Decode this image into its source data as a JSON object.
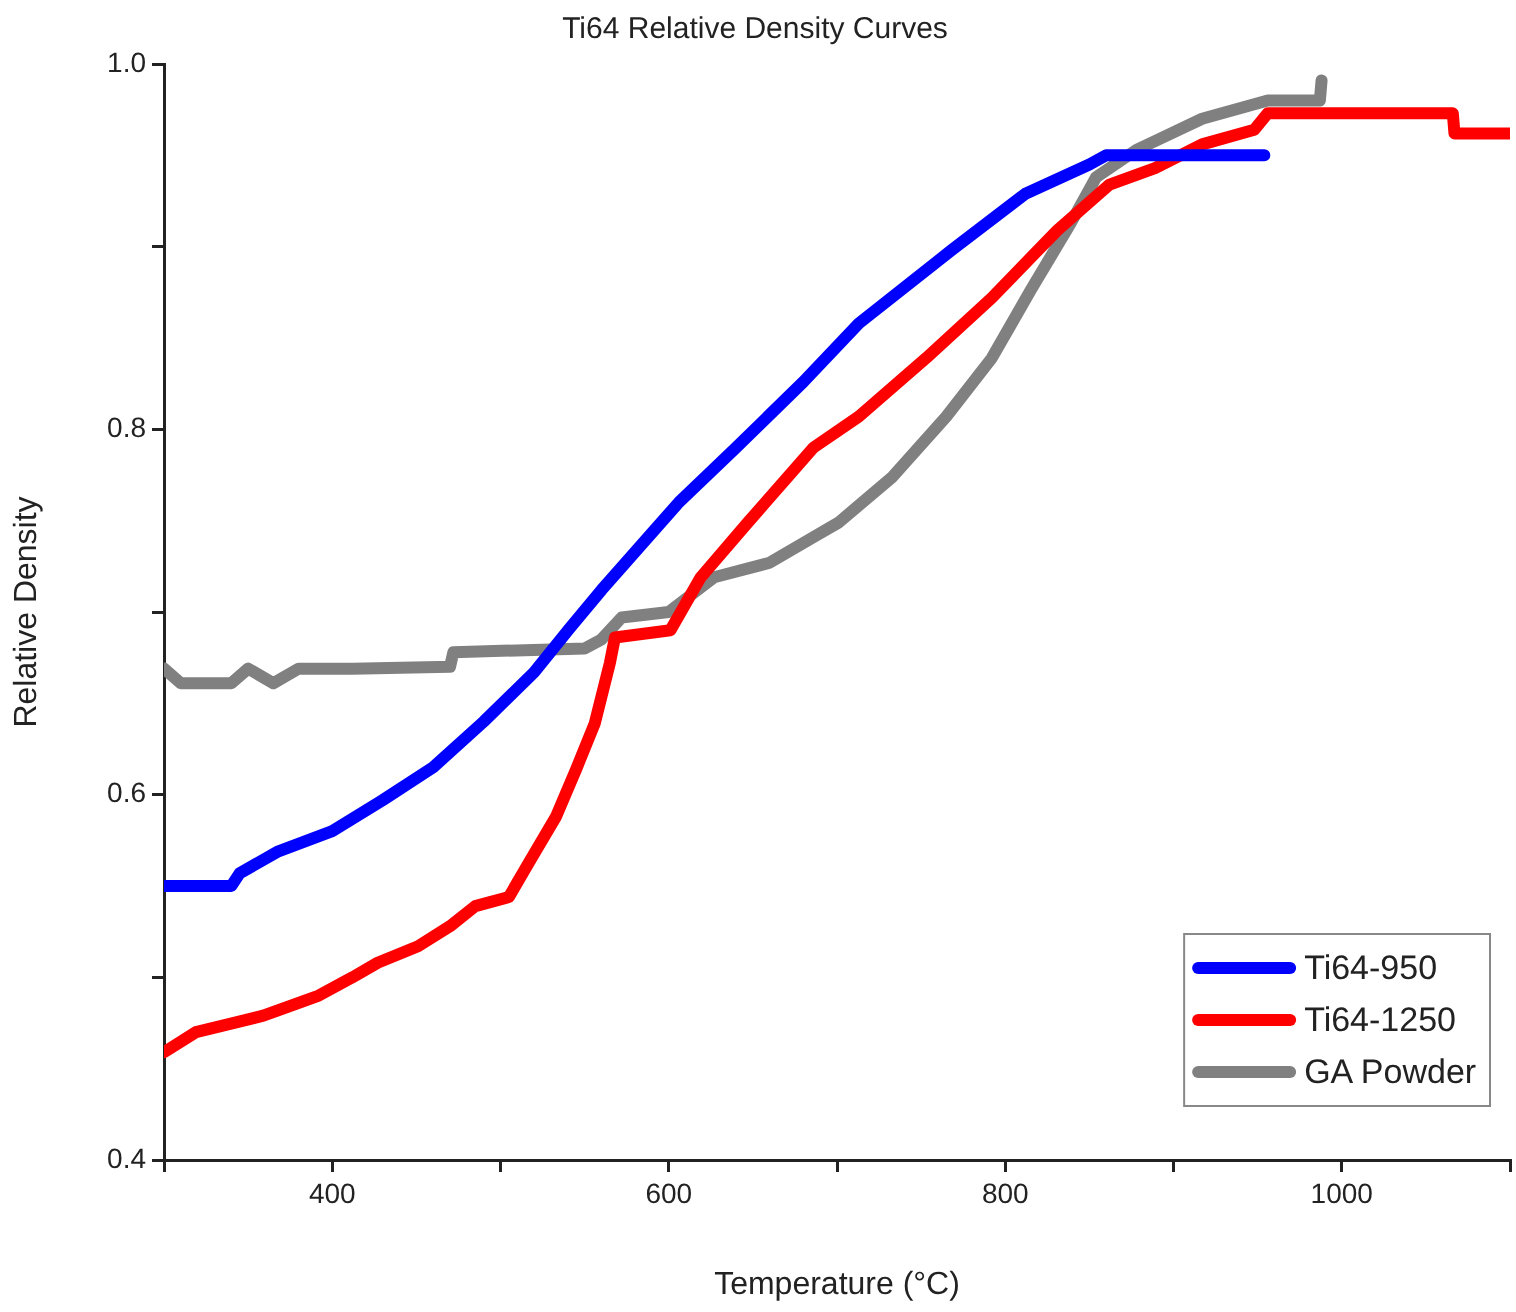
{
  "chart_data": {
    "type": "line",
    "title": "Ti64 Relative Density Curves",
    "xlabel": "Temperature (°C)",
    "ylabel": "Relative Density",
    "xlim": [
      300,
      1100
    ],
    "xticks": [
      {
        "value": 300,
        "label": null
      },
      400,
      {
        "value": 500,
        "label": null
      },
      600,
      {
        "value": 700,
        "label": null
      },
      800,
      {
        "value": 900,
        "label": null
      },
      1000,
      {
        "value": 1100,
        "label": null
      }
    ],
    "ylim": [
      0.4,
      1.0
    ],
    "yticks": [
      0.4,
      {
        "value": 0.5,
        "label": null
      },
      0.6,
      {
        "value": 0.7,
        "label": null
      },
      0.8,
      {
        "value": 0.9,
        "label": null
      },
      {
        "value": 1.0,
        "label": "1.0"
      }
    ],
    "grid": false,
    "legend": "bottom right",
    "marker": "none",
    "line_style": "solid",
    "series": [
      {
        "name": "Ti64-950",
        "color": "#0000ff",
        "x": [
          300,
          340,
          345,
          368,
          400,
          430,
          460,
          490,
          520,
          541,
          560,
          606,
          640,
          680,
          713,
          768,
          812,
          850,
          860,
          954
        ],
        "values": [
          0.55,
          0.55,
          0.557,
          0.569,
          0.58,
          0.597,
          0.615,
          0.64,
          0.667,
          0.691,
          0.712,
          0.76,
          0.79,
          0.826,
          0.858,
          0.898,
          0.929,
          0.945,
          0.95,
          0.95
        ]
      },
      {
        "name": "Ti64-1250",
        "color": "#ff0000",
        "x": [
          300,
          319,
          359,
          392,
          412,
          427,
          451,
          470,
          485,
          505,
          517,
          533,
          545,
          556,
          565,
          568,
          601,
          619,
          647,
          686,
          713,
          753,
          792,
          831,
          862,
          889,
          917,
          948,
          956,
          1066,
          1067,
          1100
        ],
        "values": [
          0.459,
          0.47,
          0.479,
          0.49,
          0.5,
          0.508,
          0.517,
          0.528,
          0.539,
          0.544,
          0.563,
          0.588,
          0.614,
          0.639,
          0.672,
          0.686,
          0.69,
          0.719,
          0.749,
          0.79,
          0.807,
          0.839,
          0.872,
          0.909,
          0.934,
          0.943,
          0.956,
          0.964,
          0.973,
          0.973,
          0.962,
          0.962
        ]
      },
      {
        "name": "GA Powder",
        "color": "#808080",
        "x": [
          300,
          310,
          340,
          350,
          365,
          380,
          412,
          470,
          472,
          550,
          560,
          572,
          600,
          627,
          660,
          686,
          701,
          733,
          765,
          792,
          815,
          839,
          854,
          878,
          894,
          917,
          956,
          987,
          988
        ],
        "values": [
          0.669,
          0.661,
          0.661,
          0.669,
          0.661,
          0.669,
          0.669,
          0.67,
          0.678,
          0.68,
          0.685,
          0.697,
          0.7,
          0.719,
          0.727,
          0.741,
          0.749,
          0.774,
          0.807,
          0.839,
          0.876,
          0.913,
          0.938,
          0.953,
          0.96,
          0.97,
          0.98,
          0.98,
          0.991
        ]
      }
    ]
  }
}
